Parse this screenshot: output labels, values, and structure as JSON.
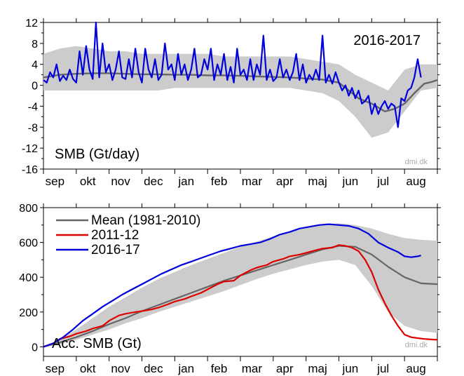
{
  "chart_data": [
    {
      "type": "line",
      "title": "",
      "year_label": "2016-2017",
      "panel_label": "SMB (Gt/day)",
      "watermark": "dmi.dk",
      "xlabel": "",
      "ylabel": "",
      "x_unit": "months (0 = 1 Sep 2016)",
      "x_tick_labels": [
        "sep",
        "okt",
        "nov",
        "dec",
        "jan",
        "feb",
        "mar",
        "apr",
        "maj",
        "jun",
        "jul",
        "aug"
      ],
      "xlim": [
        0,
        12
      ],
      "ylim": [
        -16,
        12
      ],
      "y_ticks": [
        12,
        8,
        4,
        0,
        -4,
        -8,
        -12,
        -16
      ],
      "legend": "none",
      "colors": {
        "band": "#cccccc",
        "mean": "#666666",
        "current": "#0000dd"
      },
      "band": {
        "x": [
          0,
          0.5,
          1,
          1.5,
          2,
          2.5,
          3,
          3.5,
          4,
          4.5,
          5,
          5.5,
          6,
          6.5,
          7,
          7.5,
          8,
          8.5,
          9,
          9.5,
          10,
          10.5,
          11,
          11.5,
          12
        ],
        "low": [
          -1,
          -1,
          -1,
          -1,
          -1,
          -1,
          -1,
          -1,
          -0.5,
          -0.5,
          -0.5,
          -0.5,
          -0.5,
          -0.5,
          -0.5,
          -0.5,
          -1,
          -1.5,
          -3,
          -6,
          -10,
          -9,
          -5,
          -1,
          -0.5
        ],
        "high": [
          6,
          7,
          7.5,
          7,
          6.5,
          6.5,
          6,
          6,
          6,
          6,
          6,
          5.5,
          5.5,
          5.5,
          5.5,
          5.5,
          5,
          4.5,
          4,
          2,
          0.5,
          -1,
          3,
          4,
          4
        ]
      },
      "series": [
        {
          "name": "",
          "role": "mean",
          "x": [
            0,
            0.5,
            1,
            1.5,
            2,
            2.5,
            3,
            3.5,
            4,
            4.5,
            5,
            5.5,
            6,
            6.5,
            7,
            7.5,
            8,
            8.5,
            9,
            9.3,
            9.6,
            10,
            10.4,
            10.7,
            11,
            11.3,
            11.6,
            11.8,
            12
          ],
          "y": [
            1.5,
            2,
            2.2,
            2.3,
            2.3,
            2.2,
            2.1,
            2.1,
            2,
            2,
            1.9,
            1.9,
            1.8,
            1.7,
            1.6,
            1.5,
            1.3,
            1.1,
            0.5,
            -1,
            -2.5,
            -3.5,
            -5,
            -4.5,
            -3.5,
            -1.5,
            0.3,
            0.6,
            1
          ]
        },
        {
          "name": "",
          "role": "current",
          "x": [
            0,
            0.1,
            0.2,
            0.3,
            0.4,
            0.5,
            0.6,
            0.7,
            0.8,
            0.9,
            1,
            1.1,
            1.2,
            1.3,
            1.4,
            1.5,
            1.6,
            1.7,
            1.8,
            1.9,
            2,
            2.1,
            2.2,
            2.3,
            2.4,
            2.5,
            2.6,
            2.7,
            2.8,
            2.9,
            3,
            3.1,
            3.2,
            3.3,
            3.4,
            3.5,
            3.6,
            3.7,
            3.8,
            3.9,
            4,
            4.1,
            4.2,
            4.3,
            4.4,
            4.5,
            4.6,
            4.7,
            4.8,
            4.9,
            5,
            5.1,
            5.2,
            5.3,
            5.4,
            5.5,
            5.6,
            5.7,
            5.8,
            5.9,
            6,
            6.1,
            6.2,
            6.3,
            6.4,
            6.5,
            6.6,
            6.7,
            6.8,
            6.9,
            7,
            7.1,
            7.2,
            7.3,
            7.4,
            7.5,
            7.6,
            7.7,
            7.8,
            7.9,
            8,
            8.1,
            8.2,
            8.3,
            8.4,
            8.5,
            8.6,
            8.7,
            8.8,
            8.9,
            9,
            9.1,
            9.2,
            9.3,
            9.4,
            9.5,
            9.6,
            9.7,
            9.8,
            9.9,
            10,
            10.1,
            10.2,
            10.3,
            10.4,
            10.5,
            10.6,
            10.7,
            10.8,
            10.9,
            11,
            11.1,
            11.2,
            11.3,
            11.4,
            11.5
          ],
          "y": [
            1,
            0.5,
            2.5,
            1.5,
            4,
            0.8,
            1.8,
            1,
            3,
            1.2,
            0.5,
            6.5,
            2,
            7.5,
            3,
            1.2,
            12,
            1.5,
            8,
            2.5,
            4,
            1,
            3,
            6.5,
            1.5,
            1.2,
            5,
            1.5,
            7,
            2.5,
            0.5,
            7,
            3,
            1.5,
            5,
            1,
            2,
            8,
            3,
            4,
            1,
            6,
            2,
            4,
            1,
            3,
            7,
            1.5,
            2,
            5,
            3,
            7,
            1,
            4,
            2,
            6,
            1,
            3.5,
            0.5,
            7,
            2,
            3,
            1,
            5,
            1,
            4,
            2,
            9.5,
            1,
            3,
            0.8,
            1.5,
            5,
            1.5,
            3,
            1,
            2.5,
            6,
            1,
            4,
            0.5,
            2,
            1,
            3,
            1,
            9.5,
            0.5,
            2,
            0.3,
            2.5,
            0.5,
            -1,
            0,
            -2,
            -0.5,
            -2.5,
            -1,
            -3.5,
            -3,
            -2,
            -5.5,
            -3.5,
            -5.5,
            -4,
            -3,
            -4.5,
            -3.5,
            -4,
            -8,
            -2.5,
            -3,
            -1,
            -0.5,
            1.5,
            5,
            1.5
          ]
        }
      ]
    },
    {
      "type": "line",
      "title": "",
      "panel_label": "Acc. SMB (Gt)",
      "watermark": "dmi.dk",
      "xlabel": "",
      "ylabel": "",
      "x_unit": "months (0 = 1 Sep)",
      "x_tick_labels": [
        "sep",
        "okt",
        "nov",
        "dec",
        "jan",
        "feb",
        "mar",
        "apr",
        "maj",
        "jun",
        "jul",
        "aug"
      ],
      "xlim": [
        0,
        12
      ],
      "ylim": [
        -55,
        800
      ],
      "y_ticks": [
        800,
        600,
        400,
        200,
        0
      ],
      "legend": "top-left",
      "colors": {
        "band": "#cccccc"
      },
      "band": {
        "x": [
          0,
          0.5,
          1,
          1.5,
          2,
          2.5,
          3,
          3.5,
          4,
          4.5,
          5,
          5.5,
          6,
          6.5,
          7,
          7.5,
          8,
          8.5,
          9,
          9.5,
          10,
          10.5,
          11,
          11.5,
          12
        ],
        "low": [
          0,
          15,
          40,
          70,
          100,
          135,
          165,
          200,
          230,
          260,
          290,
          320,
          355,
          390,
          420,
          445,
          470,
          490,
          500,
          470,
          350,
          200,
          120,
          90,
          80
        ],
        "high": [
          0,
          40,
          100,
          165,
          230,
          285,
          340,
          390,
          430,
          470,
          505,
          540,
          575,
          605,
          635,
          660,
          685,
          700,
          710,
          700,
          680,
          650,
          625,
          615,
          610
        ]
      },
      "series": [
        {
          "name": "Mean (1981-2010)",
          "color": "#666666",
          "x": [
            0,
            0.5,
            1,
            1.5,
            2,
            2.5,
            3,
            3.5,
            4,
            4.5,
            5,
            5.5,
            6,
            6.5,
            7,
            7.5,
            8,
            8.5,
            9,
            9.5,
            10,
            10.5,
            11,
            11.5,
            12
          ],
          "y": [
            0,
            25,
            55,
            90,
            130,
            165,
            205,
            240,
            275,
            310,
            345,
            380,
            410,
            440,
            470,
            500,
            530,
            560,
            580,
            575,
            530,
            460,
            400,
            365,
            360
          ]
        },
        {
          "name": "2011-12",
          "color": "#dd0000",
          "x": [
            0,
            0.3,
            0.5,
            0.8,
            1,
            1.3,
            1.5,
            1.8,
            2,
            2.3,
            2.5,
            2.8,
            3,
            3.3,
            3.5,
            3.8,
            4,
            4.3,
            4.5,
            4.8,
            5,
            5.3,
            5.5,
            5.8,
            6,
            6.3,
            6.5,
            6.8,
            7,
            7.3,
            7.5,
            7.8,
            8,
            8.3,
            8.5,
            8.8,
            9,
            9.2,
            9.4,
            9.6,
            9.8,
            10,
            10.2,
            10.4,
            10.6,
            10.8,
            11,
            11.2,
            11.4,
            11.6,
            11.8,
            12
          ],
          "y": [
            0,
            20,
            45,
            60,
            75,
            90,
            105,
            120,
            150,
            180,
            190,
            200,
            205,
            215,
            225,
            245,
            260,
            275,
            290,
            310,
            330,
            360,
            375,
            380,
            410,
            440,
            455,
            470,
            490,
            505,
            520,
            530,
            540,
            555,
            565,
            570,
            585,
            580,
            570,
            550,
            500,
            430,
            330,
            250,
            180,
            120,
            70,
            55,
            50,
            45,
            42,
            40
          ]
        },
        {
          "name": "2016-17",
          "color": "#0000dd",
          "x": [
            0,
            0.3,
            0.6,
            0.9,
            1.2,
            1.5,
            1.8,
            2.1,
            2.4,
            2.7,
            3,
            3.3,
            3.6,
            3.9,
            4.2,
            4.5,
            4.8,
            5.1,
            5.4,
            5.7,
            6,
            6.3,
            6.6,
            6.9,
            7.2,
            7.5,
            7.8,
            8.1,
            8.4,
            8.7,
            9,
            9.3,
            9.6,
            9.9,
            10.2,
            10.5,
            10.8,
            11,
            11.2,
            11.4,
            11.5
          ],
          "y": [
            0,
            20,
            55,
            100,
            150,
            190,
            230,
            265,
            300,
            330,
            360,
            390,
            420,
            445,
            470,
            490,
            510,
            530,
            550,
            565,
            580,
            590,
            600,
            620,
            645,
            660,
            680,
            690,
            700,
            705,
            700,
            695,
            680,
            650,
            600,
            570,
            545,
            520,
            515,
            520,
            525
          ]
        }
      ]
    }
  ]
}
